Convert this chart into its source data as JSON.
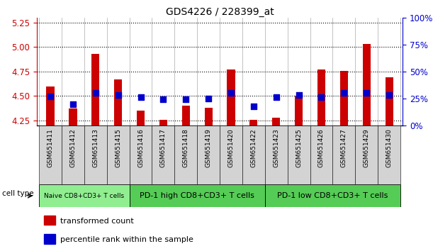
{
  "title": "GDS4226 / 228399_at",
  "samples": [
    "GSM651411",
    "GSM651412",
    "GSM651413",
    "GSM651415",
    "GSM651416",
    "GSM651417",
    "GSM651418",
    "GSM651419",
    "GSM651420",
    "GSM651422",
    "GSM651423",
    "GSM651425",
    "GSM651426",
    "GSM651427",
    "GSM651429",
    "GSM651430"
  ],
  "transformed_count": [
    4.6,
    4.37,
    4.93,
    4.67,
    4.35,
    4.26,
    4.4,
    4.38,
    4.77,
    4.26,
    4.28,
    4.5,
    4.77,
    4.76,
    5.03,
    4.69
  ],
  "percentile_rank": [
    27,
    20,
    30,
    28,
    26,
    24,
    24,
    25,
    30,
    18,
    26,
    28,
    26,
    30,
    30,
    28
  ],
  "ylim_left": [
    4.2,
    5.3
  ],
  "ylim_right": [
    0,
    100
  ],
  "yticks_left": [
    4.25,
    4.5,
    4.75,
    5.0,
    5.25
  ],
  "yticks_right": [
    0,
    25,
    50,
    75,
    100
  ],
  "cell_type_groups": [
    {
      "label": "Naive CD8+CD3+ T cells",
      "start": 0,
      "end": 4
    },
    {
      "label": "PD-1 high CD8+CD3+ T cells",
      "start": 4,
      "end": 10
    },
    {
      "label": "PD-1 low CD8+CD3+ T cells",
      "start": 10,
      "end": 16
    }
  ],
  "group_colors": [
    "#90EE90",
    "#55CC55",
    "#55CC55"
  ],
  "bar_color": "#CC0000",
  "dot_color": "#0000CC",
  "bar_width": 0.35,
  "dot_size": 40,
  "left_axis_color": "#CC0000",
  "right_axis_color": "#0000CC",
  "bg_color": "#FFFFFF",
  "xtick_bg_color": "#D3D3D3",
  "legend_items": [
    {
      "label": "transformed count",
      "color": "#CC0000"
    },
    {
      "label": "percentile rank within the sample",
      "color": "#0000CC"
    }
  ],
  "cell_type_label": "cell type"
}
